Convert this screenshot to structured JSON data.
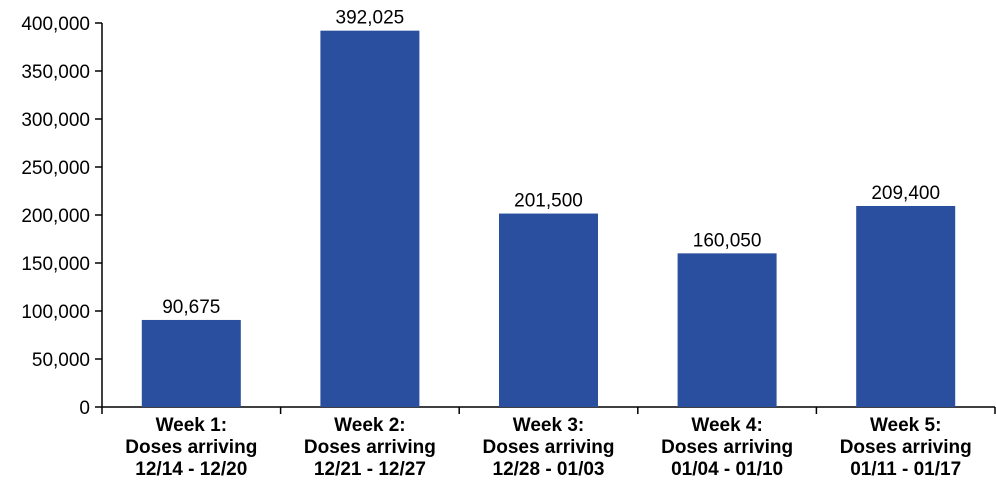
{
  "chart_data": {
    "type": "bar",
    "title": "",
    "xlabel": "",
    "ylabel": "",
    "categories": [
      [
        "Week 1:",
        "Doses arriving",
        "12/14 - 12/20"
      ],
      [
        "Week 2:",
        "Doses arriving",
        "12/21 - 12/27"
      ],
      [
        "Week 3:",
        "Doses arriving",
        "12/28 - 01/03"
      ],
      [
        "Week 4:",
        "Doses arriving",
        "01/04 - 01/10"
      ],
      [
        "Week 5:",
        "Doses arriving",
        "01/11 - 01/17"
      ]
    ],
    "values": [
      90675,
      392025,
      201500,
      160050,
      209400
    ],
    "value_labels": [
      "90,675",
      "392,025",
      "201,500",
      "160,050",
      "209,400"
    ],
    "ylim": [
      0,
      400000
    ],
    "yticks": [
      0,
      50000,
      100000,
      150000,
      200000,
      250000,
      300000,
      350000,
      400000
    ],
    "ytick_labels": [
      "0",
      "50,000",
      "100,000",
      "150,000",
      "200,000",
      "250,000",
      "300,000",
      "350,000",
      "400,000"
    ],
    "grid": false,
    "legend": "none",
    "bar_color": "#2a4f9f"
  }
}
